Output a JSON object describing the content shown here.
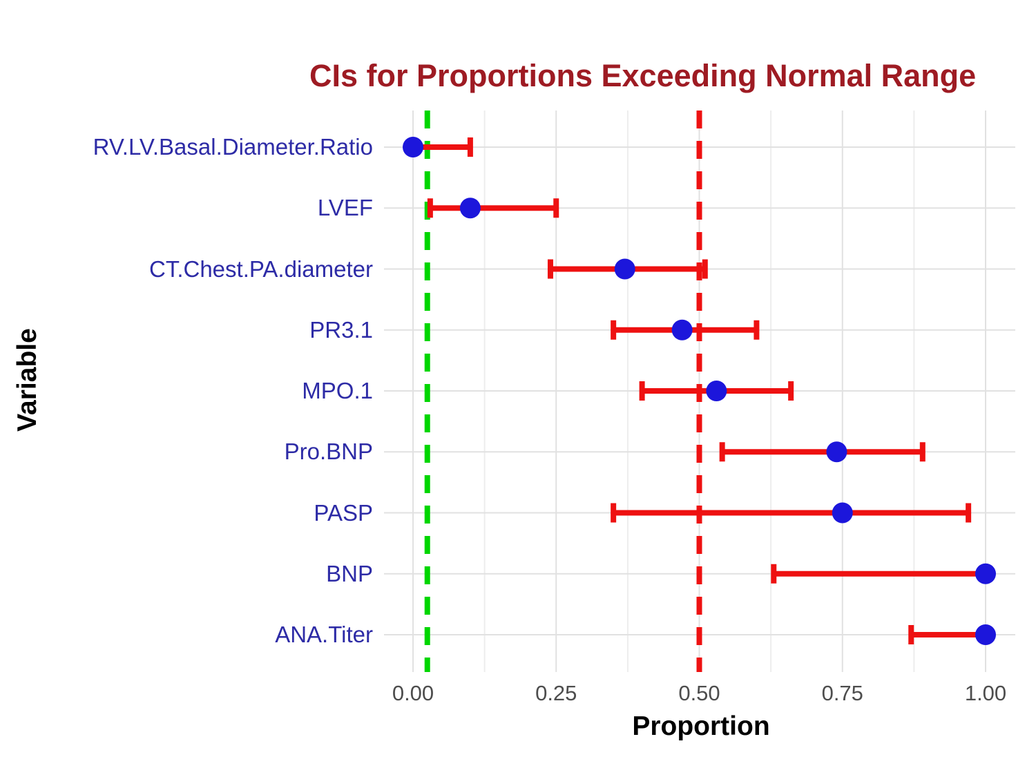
{
  "figure": {
    "title": "CIs for Proportions Exceeding Normal Range",
    "title_color": "#9E1B23",
    "background_color": "#FFFFFF"
  },
  "axes": {
    "x_label": "Proportion",
    "y_label": "Variable",
    "x_tick_labels": [
      "0.00",
      "0.25",
      "0.50",
      "0.75",
      "1.00"
    ],
    "x_tick_values": [
      0,
      0.25,
      0.5,
      0.75,
      1
    ],
    "x_minor_values": [
      0.125,
      0.375,
      0.625,
      0.875
    ],
    "axis_text_color": "#4D4D4D",
    "axis_title_color": "#000000"
  },
  "chart_data": {
    "type": "scatter",
    "subtype": "horizontal-errorbar-forest-plot",
    "title": "CIs for Proportions Exceeding Normal Range",
    "xlabel": "Proportion",
    "ylabel": "Variable",
    "xlim": [
      -0.05,
      1.05
    ],
    "grid": true,
    "legend": false,
    "categories": [
      "RV.LV.Basal.Diameter.Ratio",
      "LVEF",
      "CT.Chest.PA.diameter",
      "PR3.1",
      "MPO.1",
      "Pro.BNP",
      "PASP",
      "BNP",
      "ANA.Titer"
    ],
    "rows": [
      {
        "label": "RV.LV.Basal.Diameter.Ratio",
        "estimate": 0.0,
        "lower": 0.0,
        "upper": 0.1
      },
      {
        "label": "LVEF",
        "estimate": 0.1,
        "lower": 0.03,
        "upper": 0.25
      },
      {
        "label": "CT.Chest.PA.diameter",
        "estimate": 0.37,
        "lower": 0.24,
        "upper": 0.51
      },
      {
        "label": "PR3.1",
        "estimate": 0.47,
        "lower": 0.35,
        "upper": 0.6
      },
      {
        "label": "MPO.1",
        "estimate": 0.53,
        "lower": 0.4,
        "upper": 0.66
      },
      {
        "label": "Pro.BNP",
        "estimate": 0.74,
        "lower": 0.54,
        "upper": 0.89
      },
      {
        "label": "PASP",
        "estimate": 0.75,
        "lower": 0.35,
        "upper": 0.97
      },
      {
        "label": "BNP",
        "estimate": 1.0,
        "lower": 0.63,
        "upper": 1.0
      },
      {
        "label": "ANA.Titer",
        "estimate": 1.0,
        "lower": 0.87,
        "upper": 1.0
      }
    ],
    "reference_lines": [
      {
        "name": "green-dashed-reference",
        "value": 0.025,
        "color": "#00D600",
        "style": "dashed"
      },
      {
        "name": "red-dashed-reference",
        "value": 0.5,
        "color": "#EE1111",
        "style": "dashed"
      }
    ],
    "style": {
      "point_color": "#1C16DB",
      "bar_color": "#EE1111",
      "category_label_color": "#2D2BA6",
      "grid_major_color": "#E1E1E1",
      "grid_minor_color": "#EDEDED"
    }
  }
}
